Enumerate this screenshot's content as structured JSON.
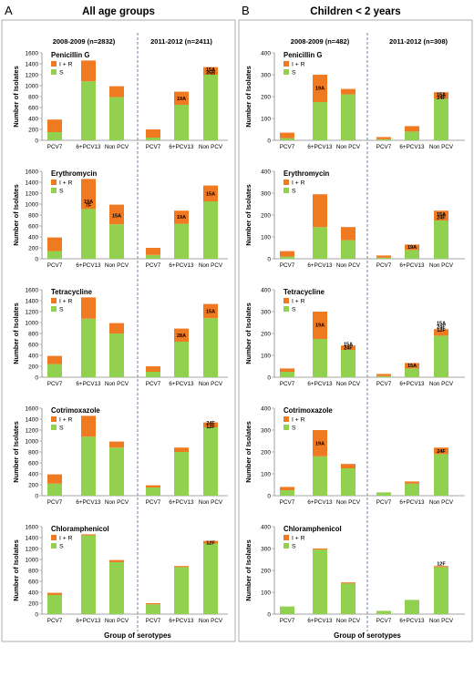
{
  "figure": {
    "panel_letters": [
      "A",
      "B"
    ],
    "panel_titles": [
      "All age groups",
      "Children < 2 years"
    ],
    "period_labels": [
      "2008-2009 (n=2832)",
      "2011-2012 (n=2411)",
      "2008-2009 (n=482)",
      "2011-2012 (n=308)"
    ],
    "y_axis_label": "Number of Isolates",
    "x_axis_label": "Group of serotypes",
    "legend_ir": "I + R",
    "legend_s": "S",
    "colors": {
      "ir": "#F07A22",
      "s": "#92D050",
      "axis": "#888888",
      "divider": "#6E86A8"
    }
  },
  "chart_data": [
    {
      "type": "bar",
      "stacked": true,
      "panel": "A",
      "antibiotic": "Penicillin G",
      "ylim": [
        0,
        1600
      ],
      "yticks": [
        0,
        200,
        400,
        600,
        800,
        1000,
        1200,
        1400,
        1600
      ],
      "categories": [
        "PCV7",
        "6+PCV13",
        "Non PCV",
        "PCV7",
        "6+PCV13",
        "Non PCV"
      ],
      "series": [
        {
          "name": "S",
          "values": [
            150,
            1080,
            790,
            50,
            650,
            1200
          ]
        },
        {
          "name": "I + R",
          "values": [
            230,
            380,
            200,
            150,
            240,
            140
          ]
        }
      ],
      "annotations": [
        {
          "bar": 4,
          "text": "19A",
          "level": 770
        },
        {
          "bar": 5,
          "text": "15A",
          "level": 1300
        },
        {
          "bar": 5,
          "text": "35B",
          "level": 1245
        }
      ]
    },
    {
      "type": "bar",
      "stacked": true,
      "panel": "A",
      "antibiotic": "Erythromycin",
      "ylim": [
        0,
        1600
      ],
      "yticks": [
        0,
        200,
        400,
        600,
        800,
        1000,
        1200,
        1400,
        1600
      ],
      "categories": [
        "PCV7",
        "6+PCV13",
        "Non PCV",
        "PCV7",
        "6+PCV13",
        "Non PCV"
      ],
      "series": [
        {
          "name": "S",
          "values": [
            140,
            910,
            630,
            70,
            640,
            1050
          ]
        },
        {
          "name": "I + R",
          "values": [
            250,
            550,
            360,
            130,
            240,
            290
          ]
        }
      ],
      "annotations": [
        {
          "bar": 1,
          "text": "19A",
          "level": 1050
        },
        {
          "bar": 1,
          "text": "7F",
          "level": 985
        },
        {
          "bar": 2,
          "text": "15A",
          "level": 790
        },
        {
          "bar": 4,
          "text": "19A",
          "level": 770
        },
        {
          "bar": 5,
          "text": "15A",
          "level": 1190
        }
      ]
    },
    {
      "type": "bar",
      "stacked": true,
      "panel": "A",
      "antibiotic": "Tetracycline",
      "ylim": [
        0,
        1600
      ],
      "yticks": [
        0,
        200,
        400,
        600,
        800,
        1000,
        1200,
        1400,
        1600
      ],
      "categories": [
        "PCV7",
        "6+PCV13",
        "Non PCV",
        "PCV7",
        "6+PCV13",
        "Non PCV"
      ],
      "series": [
        {
          "name": "S",
          "values": [
            240,
            1070,
            800,
            100,
            650,
            1080
          ]
        },
        {
          "name": "I + R",
          "values": [
            150,
            390,
            190,
            100,
            240,
            260
          ]
        }
      ],
      "annotations": [
        {
          "bar": 4,
          "text": "28A",
          "level": 770
        },
        {
          "bar": 5,
          "text": "15A",
          "level": 1210
        }
      ]
    },
    {
      "type": "bar",
      "stacked": true,
      "panel": "A",
      "antibiotic": "Cotrimoxazole",
      "ylim": [
        0,
        1600
      ],
      "yticks": [
        0,
        200,
        400,
        600,
        800,
        1000,
        1200,
        1400,
        1600
      ],
      "categories": [
        "PCV7",
        "6+PCV13",
        "Non PCV",
        "PCV7",
        "6+PCV13",
        "Non PCV"
      ],
      "series": [
        {
          "name": "S",
          "values": [
            220,
            1080,
            880,
            150,
            800,
            1250
          ]
        },
        {
          "name": "I + R",
          "values": [
            170,
            380,
            110,
            40,
            80,
            90
          ]
        }
      ],
      "annotations": [
        {
          "bar": 5,
          "text": "24F",
          "level": 1330
        },
        {
          "bar": 5,
          "text": "12F",
          "level": 1270
        }
      ]
    },
    {
      "type": "bar",
      "stacked": true,
      "panel": "A",
      "antibiotic": "Chloramphenicol",
      "ylim": [
        0,
        1600
      ],
      "yticks": [
        0,
        200,
        400,
        600,
        800,
        1000,
        1200,
        1400,
        1600
      ],
      "categories": [
        "PCV7",
        "6+PCV13",
        "Non PCV",
        "PCV7",
        "6+PCV13",
        "Non PCV"
      ],
      "series": [
        {
          "name": "S",
          "values": [
            350,
            1440,
            950,
            180,
            860,
            1290
          ]
        },
        {
          "name": "I + R",
          "values": [
            40,
            20,
            40,
            20,
            20,
            50
          ]
        }
      ],
      "annotations": [
        {
          "bar": 5,
          "text": "12F",
          "level": 1310
        }
      ]
    },
    {
      "type": "bar",
      "stacked": true,
      "panel": "B",
      "antibiotic": "Penicillin G",
      "ylim": [
        0,
        400
      ],
      "yticks": [
        0,
        100,
        200,
        300,
        400
      ],
      "categories": [
        "PCV7",
        "6+PCV13",
        "Non PCV",
        "PCV7",
        "6+PCV13",
        "Non PCV"
      ],
      "series": [
        {
          "name": "S",
          "values": [
            10,
            175,
            210,
            5,
            40,
            190
          ]
        },
        {
          "name": "I + R",
          "values": [
            25,
            125,
            25,
            10,
            25,
            30
          ]
        }
      ],
      "annotations": [
        {
          "bar": 1,
          "text": "19A",
          "level": 240
        },
        {
          "bar": 5,
          "text": "15A",
          "level": 210
        },
        {
          "bar": 5,
          "text": "24F",
          "level": 196
        }
      ]
    },
    {
      "type": "bar",
      "stacked": true,
      "panel": "B",
      "antibiotic": "Erythromycin",
      "ylim": [
        0,
        400
      ],
      "yticks": [
        0,
        100,
        200,
        300,
        400
      ],
      "categories": [
        "PCV7",
        "6+PCV13",
        "Non PCV",
        "PCV7",
        "6+PCV13",
        "Non PCV"
      ],
      "series": [
        {
          "name": "S",
          "values": [
            10,
            145,
            85,
            5,
            40,
            175
          ]
        },
        {
          "name": "I + R",
          "values": [
            25,
            150,
            60,
            10,
            25,
            45
          ]
        }
      ],
      "annotations": [
        {
          "bar": 4,
          "text": "19A",
          "level": 55
        },
        {
          "bar": 5,
          "text": "15A",
          "level": 205
        },
        {
          "bar": 5,
          "text": "24F",
          "level": 190
        }
      ]
    },
    {
      "type": "bar",
      "stacked": true,
      "panel": "B",
      "antibiotic": "Tetracycline",
      "ylim": [
        0,
        400
      ],
      "yticks": [
        0,
        100,
        200,
        300,
        400
      ],
      "categories": [
        "PCV7",
        "6+PCV13",
        "Non PCV",
        "PCV7",
        "6+PCV13",
        "Non PCV"
      ],
      "series": [
        {
          "name": "S",
          "values": [
            25,
            175,
            125,
            5,
            40,
            190
          ]
        },
        {
          "name": "I + R",
          "values": [
            15,
            125,
            20,
            10,
            25,
            30
          ]
        }
      ],
      "annotations": [
        {
          "bar": 1,
          "text": "19A",
          "level": 240
        },
        {
          "bar": 2,
          "text": "15A",
          "level": 153
        },
        {
          "bar": 2,
          "text": "24F",
          "level": 136
        },
        {
          "bar": 4,
          "text": "15A",
          "level": 55
        },
        {
          "bar": 5,
          "text": "15A",
          "level": 248
        },
        {
          "bar": 5,
          "text": "24F",
          "level": 232
        },
        {
          "bar": 5,
          "text": "12F",
          "level": 216
        }
      ]
    },
    {
      "type": "bar",
      "stacked": true,
      "panel": "B",
      "antibiotic": "Cotrimoxazole",
      "ylim": [
        0,
        400
      ],
      "yticks": [
        0,
        100,
        200,
        300,
        400
      ],
      "categories": [
        "PCV7",
        "6+PCV13",
        "Non PCV",
        "PCV7",
        "6+PCV13",
        "Non PCV"
      ],
      "series": [
        {
          "name": "S",
          "values": [
            25,
            180,
            125,
            15,
            55,
            190
          ]
        },
        {
          "name": "I + R",
          "values": [
            15,
            120,
            20,
            0,
            10,
            30
          ]
        }
      ],
      "annotations": [
        {
          "bar": 1,
          "text": "19A",
          "level": 240
        },
        {
          "bar": 5,
          "text": "24F",
          "level": 205
        }
      ]
    },
    {
      "type": "bar",
      "stacked": true,
      "panel": "B",
      "antibiotic": "Chloramphenicol",
      "ylim": [
        0,
        400
      ],
      "yticks": [
        0,
        100,
        200,
        300,
        400
      ],
      "categories": [
        "PCV7",
        "6+PCV13",
        "Non PCV",
        "PCV7",
        "6+PCV13",
        "Non PCV"
      ],
      "series": [
        {
          "name": "S",
          "values": [
            35,
            295,
            140,
            15,
            65,
            215
          ]
        },
        {
          "name": "I + R",
          "values": [
            0,
            5,
            5,
            0,
            0,
            5
          ]
        }
      ],
      "annotations": [
        {
          "bar": 5,
          "text": "12F",
          "level": 232
        }
      ]
    }
  ]
}
